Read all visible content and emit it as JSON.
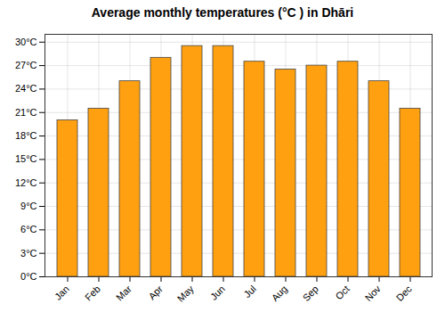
{
  "chart_data": {
    "type": "bar",
    "title": "Average monthly temperatures (°C ) in Dhāri",
    "categories": [
      "Jan",
      "Feb",
      "Mar",
      "Apr",
      "May",
      "Jun",
      "Jul",
      "Aug",
      "Sep",
      "Oct",
      "Nov",
      "Dec"
    ],
    "values": [
      20.0,
      21.5,
      25.0,
      28.0,
      29.5,
      29.5,
      27.5,
      26.5,
      27.0,
      27.5,
      25.0,
      21.5
    ],
    "color": "#FFA010",
    "ylim": [
      0,
      31
    ],
    "yticks": [
      {
        "value": 0,
        "label": "0°C"
      },
      {
        "value": 3,
        "label": "3°C"
      },
      {
        "value": 6,
        "label": "6°C"
      },
      {
        "value": 9,
        "label": "9°C"
      },
      {
        "value": 12,
        "label": "12°C"
      },
      {
        "value": 15,
        "label": "15°C"
      },
      {
        "value": 18,
        "label": "18°C"
      },
      {
        "value": 21,
        "label": "21°C"
      },
      {
        "value": 24,
        "label": "24°C"
      },
      {
        "value": 27,
        "label": "27°C"
      },
      {
        "value": 30,
        "label": "30°C"
      }
    ],
    "grid": true
  }
}
